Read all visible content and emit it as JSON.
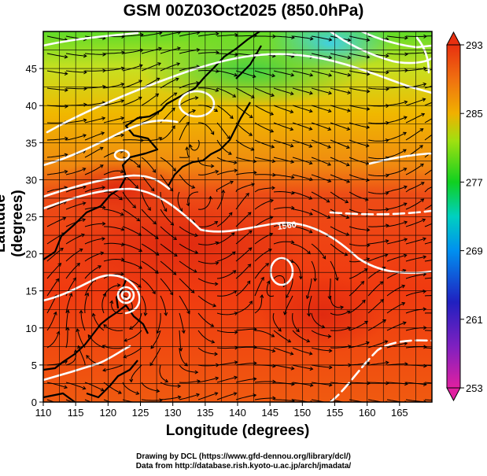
{
  "title": "GSM 00Z03Oct2025 (850.0hPa)",
  "xlabel": "Longitude (degrees)",
  "ylabel": "Latitude  (degrees)",
  "credits": [
    "Drawing by DCL (https://www.gfd-dennou.org/library/dcl/)",
    "Data from http://database.rish.kyoto-u.ac.jp/arch/jmadata/"
  ],
  "contour_label": "1560",
  "chart_data": {
    "type": "heatmap",
    "title": "GSM 00Z03Oct2025 (850.0hPa)",
    "xlabel": "Longitude (degrees)",
    "ylabel": "Latitude  (degrees)",
    "xlim": [
      110,
      170
    ],
    "ylim": [
      0,
      50
    ],
    "x_ticks": [
      110,
      115,
      120,
      125,
      130,
      135,
      140,
      145,
      150,
      155,
      160,
      165
    ],
    "y_ticks": [
      0,
      5,
      10,
      15,
      20,
      25,
      30,
      35,
      40,
      45
    ],
    "grid": true,
    "colorbar": {
      "range": [
        253,
        293
      ],
      "ticks": [
        253,
        261,
        269,
        277,
        285,
        293
      ],
      "colors": [
        "#e020a0",
        "#2020c0",
        "#00b0ff",
        "#10d020",
        "#f0b000",
        "#e83010"
      ]
    },
    "contour_labels": [
      "1560"
    ]
  }
}
